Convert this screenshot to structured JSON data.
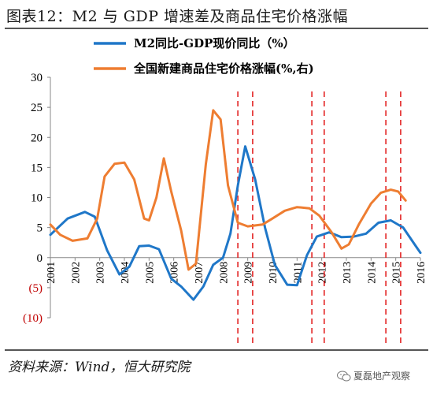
{
  "header": {
    "title": "图表12：M2 与 GDP 增速差及商品住宅价格涨幅"
  },
  "footer": {
    "source": "资料来源：Wind，恒大研究院",
    "watermark": "夏磊地产观察"
  },
  "chart_data": {
    "type": "line",
    "x": [
      "2001",
      "2002",
      "2003",
      "2004",
      "2005",
      "2006",
      "2007",
      "2008",
      "2009",
      "2010",
      "2011",
      "2012",
      "2013",
      "2014",
      "2015",
      "2016"
    ],
    "ylim": [
      -10,
      30
    ],
    "yticks": [
      30,
      25,
      20,
      15,
      10,
      5,
      0,
      -5,
      -10
    ],
    "ytick_labels": [
      "30",
      "25",
      "20",
      "15",
      "10",
      "5",
      "0",
      "(5)",
      "(10)"
    ],
    "grid": false,
    "legend_position": "top",
    "series": [
      {
        "name": "M2同比-GDP现价同比（%）",
        "color": "#1f77c8",
        "points": [
          [
            2001.0,
            3.8
          ],
          [
            2001.7,
            6.5
          ],
          [
            2002.4,
            7.6
          ],
          [
            2002.8,
            6.8
          ],
          [
            2003.3,
            1.2
          ],
          [
            2003.8,
            -2.8
          ],
          [
            2004.2,
            -1.5
          ],
          [
            2004.6,
            1.9
          ],
          [
            2005.0,
            2.0
          ],
          [
            2005.4,
            1.4
          ],
          [
            2005.9,
            -3.5
          ],
          [
            2006.3,
            -4.8
          ],
          [
            2006.8,
            -7.0
          ],
          [
            2007.2,
            -4.8
          ],
          [
            2007.6,
            -1.2
          ],
          [
            2008.0,
            0.0
          ],
          [
            2008.3,
            4.0
          ],
          [
            2008.6,
            12.0
          ],
          [
            2008.9,
            18.5
          ],
          [
            2009.3,
            13.0
          ],
          [
            2009.7,
            5.0
          ],
          [
            2010.1,
            -1.2
          ],
          [
            2010.6,
            -4.5
          ],
          [
            2011.0,
            -4.6
          ],
          [
            2011.4,
            0.4
          ],
          [
            2011.8,
            3.5
          ],
          [
            2012.3,
            4.2
          ],
          [
            2012.8,
            3.4
          ],
          [
            2013.3,
            3.5
          ],
          [
            2013.8,
            4.0
          ],
          [
            2014.3,
            5.8
          ],
          [
            2014.8,
            6.2
          ],
          [
            2015.3,
            5.0
          ],
          [
            2015.8,
            2.0
          ],
          [
            2016.0,
            0.8
          ]
        ]
      },
      {
        "name": "全国新建商品住宅价格涨幅(%,右)",
        "color": "#ee7d31",
        "points": [
          [
            2001.0,
            5.5
          ],
          [
            2001.4,
            3.8
          ],
          [
            2001.9,
            2.8
          ],
          [
            2002.5,
            3.2
          ],
          [
            2002.9,
            6.5
          ],
          [
            2003.2,
            13.5
          ],
          [
            2003.6,
            15.6
          ],
          [
            2004.0,
            15.8
          ],
          [
            2004.4,
            13.0
          ],
          [
            2004.8,
            6.5
          ],
          [
            2005.0,
            6.2
          ],
          [
            2005.3,
            10.0
          ],
          [
            2005.6,
            16.5
          ],
          [
            2005.9,
            11.0
          ],
          [
            2006.3,
            4.5
          ],
          [
            2006.6,
            -2.0
          ],
          [
            2006.9,
            -1.0
          ],
          [
            2007.3,
            15.5
          ],
          [
            2007.6,
            24.5
          ],
          [
            2007.9,
            23.0
          ],
          [
            2008.2,
            12.0
          ],
          [
            2008.6,
            5.8
          ],
          [
            2009.0,
            5.2
          ],
          [
            2009.6,
            5.5
          ],
          [
            2010.0,
            6.5
          ],
          [
            2010.5,
            7.8
          ],
          [
            2011.0,
            8.4
          ],
          [
            2011.5,
            8.2
          ],
          [
            2011.9,
            7.0
          ],
          [
            2012.4,
            4.2
          ],
          [
            2012.8,
            1.5
          ],
          [
            2013.1,
            2.2
          ],
          [
            2013.5,
            5.5
          ],
          [
            2014.0,
            9.0
          ],
          [
            2014.4,
            10.8
          ],
          [
            2014.8,
            11.3
          ],
          [
            2015.1,
            11.0
          ],
          [
            2015.4,
            9.5
          ]
        ]
      }
    ],
    "reference_lines": {
      "color": "#e32222",
      "style": "dashed",
      "x": [
        2008.6,
        2009.2,
        2011.6,
        2012.1,
        2014.6,
        2015.2
      ]
    }
  }
}
